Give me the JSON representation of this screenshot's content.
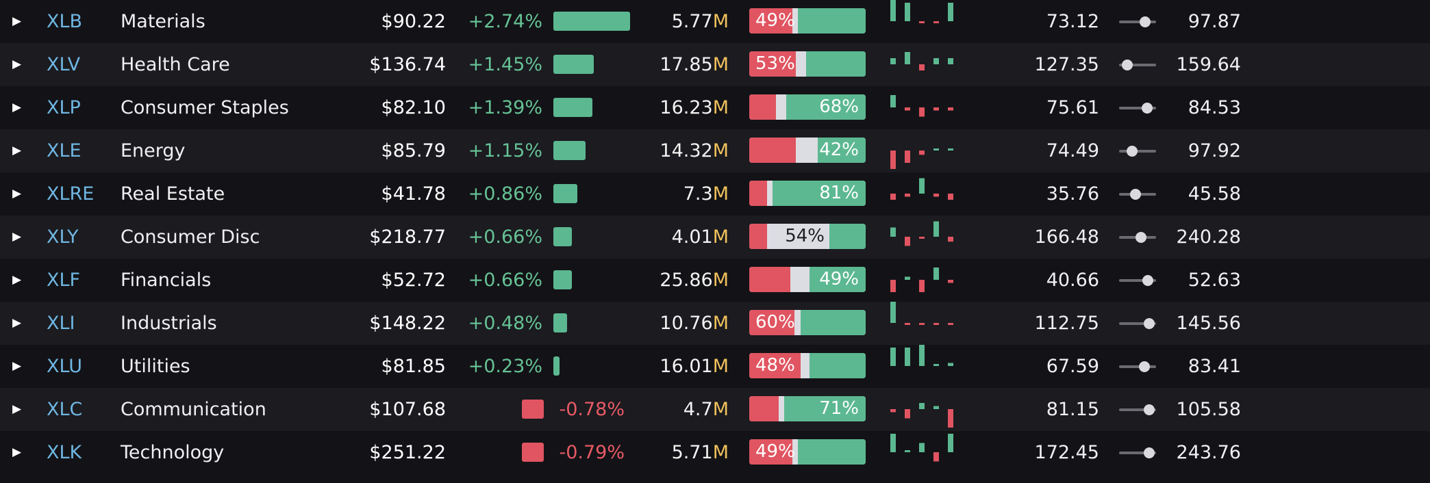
{
  "colors": {
    "up": "#5cb891",
    "down": "#e05561",
    "neutral": "#dcdde3",
    "symbol": "#6fb6e2",
    "volume_unit": "#f1c25c"
  },
  "icons": {
    "expand": "caret-right-icon"
  },
  "rows": [
    {
      "symbol": "XLB",
      "name": "Materials",
      "price": "$90.22",
      "change": "+2.74%",
      "change_value": 2.74,
      "volume": "5.77",
      "volume_unit": "M",
      "ratio_label": "49%",
      "ratio_red": 0.37,
      "ratio_gray": 0.05,
      "low": "73.12",
      "high": "97.87",
      "range_position": 0.7,
      "spark": [
        -4,
        -3,
        0,
        0,
        -3
      ]
    },
    {
      "symbol": "XLV",
      "name": "Health Care",
      "price": "$136.74",
      "change": "+1.45%",
      "change_value": 1.45,
      "volume": "17.85",
      "volume_unit": "M",
      "ratio_label": "53%",
      "ratio_red": 0.4,
      "ratio_gray": 0.09,
      "low": "127.35",
      "high": "159.64",
      "range_position": 0.22,
      "spark": [
        -1,
        -2,
        1,
        -1,
        -1
      ]
    },
    {
      "symbol": "XLP",
      "name": "Consumer Staples",
      "price": "$82.10",
      "change": "+1.39%",
      "change_value": 1.39,
      "volume": "16.23",
      "volume_unit": "M",
      "ratio_label": "68%",
      "ratio_red": 0.23,
      "ratio_gray": 0.09,
      "low": "75.61",
      "high": "84.53",
      "range_position": 0.75,
      "spark": [
        -2,
        0.5,
        1.5,
        0.5,
        0.5
      ]
    },
    {
      "symbol": "XLE",
      "name": "Energy",
      "price": "$85.79",
      "change": "+1.15%",
      "change_value": 1.15,
      "volume": "14.32",
      "volume_unit": "M",
      "ratio_label": "42%",
      "ratio_red": 0.4,
      "ratio_gray": 0.19,
      "low": "74.49",
      "high": "97.92",
      "range_position": 0.35,
      "spark": [
        3,
        2,
        0.7,
        -0.3,
        -0.2
      ]
    },
    {
      "symbol": "XLRE",
      "name": "Real Estate",
      "price": "$41.78",
      "change": "+0.86%",
      "change_value": 0.86,
      "volume": "7.3",
      "volume_unit": "M",
      "ratio_label": "81%",
      "ratio_red": 0.15,
      "ratio_gray": 0.05,
      "low": "35.76",
      "high": "45.58",
      "range_position": 0.45,
      "spark": [
        1,
        0.5,
        -2.5,
        0.5,
        1
      ]
    },
    {
      "symbol": "XLY",
      "name": "Consumer Disc",
      "price": "$218.77",
      "change": "+0.66%",
      "change_value": 0.66,
      "volume": "4.01",
      "volume_unit": "M",
      "ratio_label": "54%",
      "ratio_red": 0.15,
      "ratio_gray": 0.54,
      "low": "166.48",
      "high": "240.28",
      "range_position": 0.6,
      "spark": [
        -1.5,
        1.5,
        0.2,
        -2.5,
        0.8
      ]
    },
    {
      "symbol": "XLF",
      "name": "Financials",
      "price": "$52.72",
      "change": "+0.66%",
      "change_value": 0.66,
      "volume": "25.86",
      "volume_unit": "M",
      "ratio_label": "49%",
      "ratio_red": 0.35,
      "ratio_gray": 0.17,
      "low": "40.66",
      "high": "52.63",
      "range_position": 0.78,
      "spark": [
        2,
        -0.5,
        2,
        -2,
        0.5
      ]
    },
    {
      "symbol": "XLI",
      "name": "Industrials",
      "price": "$148.22",
      "change": "+0.48%",
      "change_value": 0.48,
      "volume": "10.76",
      "volume_unit": "M",
      "ratio_label": "60%",
      "ratio_red": 0.39,
      "ratio_gray": 0.05,
      "low": "112.75",
      "high": "145.56",
      "range_position": 0.82,
      "spark": [
        -4,
        0.3,
        0.3,
        0,
        0.3
      ]
    },
    {
      "symbol": "XLU",
      "name": "Utilities",
      "price": "$81.85",
      "change": "+0.23%",
      "change_value": 0.23,
      "volume": "16.01",
      "volume_unit": "M",
      "ratio_label": "48%",
      "ratio_red": 0.44,
      "ratio_gray": 0.08,
      "low": "67.59",
      "high": "83.41",
      "range_position": 0.68,
      "spark": [
        -3,
        -3,
        -4,
        -0.3,
        -0.5
      ]
    },
    {
      "symbol": "XLC",
      "name": "Communication",
      "price": "$107.68",
      "change": "-0.78%",
      "change_value": -0.78,
      "volume": "4.7",
      "volume_unit": "M",
      "ratio_label": "71%",
      "ratio_red": 0.25,
      "ratio_gray": 0.05,
      "low": "81.15",
      "high": "105.58",
      "range_position": 0.82,
      "spark": [
        0.5,
        1.5,
        -1,
        -0.5,
        3
      ]
    },
    {
      "symbol": "XLK",
      "name": "Technology",
      "price": "$251.22",
      "change": "-0.79%",
      "change_value": -0.79,
      "volume": "5.71",
      "volume_unit": "M",
      "ratio_label": "49%",
      "ratio_red": 0.37,
      "ratio_gray": 0.05,
      "low": "172.45",
      "high": "243.76",
      "range_position": 0.82,
      "spark": [
        -3,
        -0.3,
        -1.5,
        1.5,
        -3
      ]
    }
  ]
}
